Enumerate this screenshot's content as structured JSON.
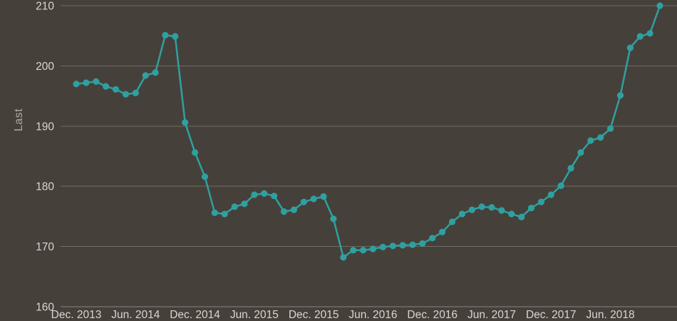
{
  "colors": {
    "background": "#46403A",
    "plot_line": "#2FA0A0",
    "marker": "#2FA0A0",
    "grid_line": "#6F6A63",
    "axis_line": "#8A857E",
    "tick_text": "#D8D5D0",
    "axis_title_text": "#B1ACA6"
  },
  "chart_data": {
    "type": "line",
    "title": "",
    "ylabel": "Last",
    "xlabel": "",
    "ylim": [
      160,
      210
    ],
    "yticks": [
      160,
      170,
      180,
      190,
      200,
      210
    ],
    "x_unit": "month",
    "x_start": "Dec. 2013",
    "grid": "horizontal",
    "legend": "none",
    "markers": true,
    "x_ticks": [
      {
        "index": 0,
        "label": "Dec. 2013"
      },
      {
        "index": 6,
        "label": "Jun. 2014"
      },
      {
        "index": 12,
        "label": "Dec. 2014"
      },
      {
        "index": 18,
        "label": "Jun. 2015"
      },
      {
        "index": 24,
        "label": "Dec. 2015"
      },
      {
        "index": 30,
        "label": "Jun. 2016"
      },
      {
        "index": 36,
        "label": "Dec. 2016"
      },
      {
        "index": 42,
        "label": "Jun. 2017"
      },
      {
        "index": 48,
        "label": "Dec. 2017"
      },
      {
        "index": 54,
        "label": "Jun. 2018"
      }
    ],
    "series": [
      {
        "name": "Last",
        "color": "#2FA0A0",
        "values": [
          197.0,
          197.2,
          197.4,
          196.6,
          196.1,
          195.3,
          195.5,
          198.4,
          198.9,
          205.1,
          204.9,
          190.6,
          185.6,
          181.6,
          175.6,
          175.4,
          176.6,
          177.1,
          178.6,
          178.8,
          178.4,
          175.8,
          176.1,
          177.4,
          177.9,
          178.3,
          174.6,
          168.2,
          169.4,
          169.4,
          169.6,
          169.9,
          170.1,
          170.2,
          170.3,
          170.5,
          171.4,
          172.4,
          174.1,
          175.4,
          176.1,
          176.6,
          176.5,
          176.0,
          175.4,
          174.9,
          176.4,
          177.4,
          178.6,
          180.1,
          183.0,
          185.6,
          187.6,
          188.1,
          189.6,
          195.1,
          203.0,
          204.9,
          205.4,
          210.0
        ]
      }
    ]
  }
}
